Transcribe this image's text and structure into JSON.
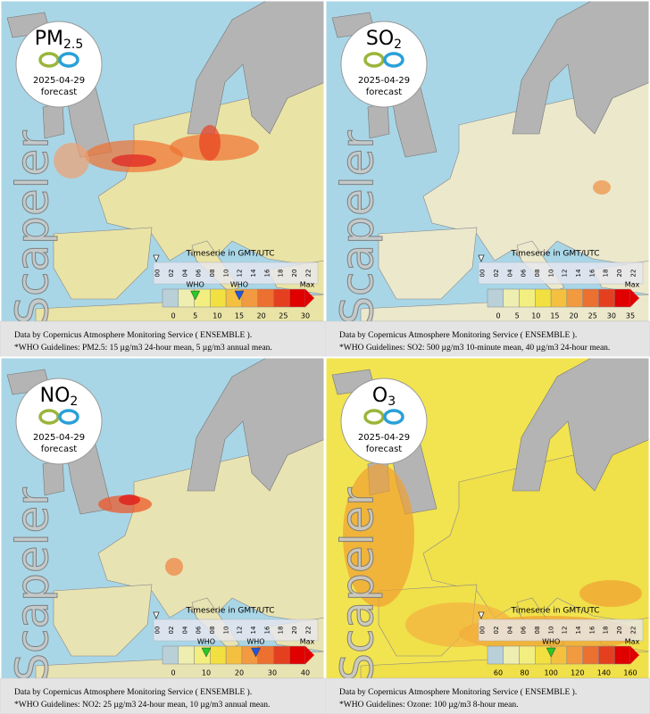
{
  "panels": [
    {
      "title": "PM",
      "subscript": "2.5",
      "date": "2025-04-29",
      "forecast": "forecast",
      "watermark": "Scapeler",
      "timeserie": "Timeserie in GMT/UTC",
      "hours": [
        "00",
        "02",
        "04",
        "06",
        "08",
        "10",
        "12",
        "14",
        "16",
        "18",
        "20",
        "22"
      ],
      "scale_labels": [
        0,
        5,
        10,
        15,
        20,
        25,
        30
      ],
      "max_label": "Max",
      "who": [
        {
          "label": "WHO",
          "value": 5
        },
        {
          "label": "WHO",
          "value": 15
        }
      ],
      "credit": "Data by Copernicus Atmosphere Monitoring Service ( ENSEMBLE ).",
      "guidelines": "*WHO Guidelines: PM2.5: 15 µg/m3 24-hour mean, 5 µg/m3 annual mean."
    },
    {
      "title": "SO",
      "subscript": "2",
      "date": "2025-04-29",
      "forecast": "forecast",
      "watermark": "Scapeler",
      "timeserie": "Timeserie in GMT/UTC",
      "hours": [
        "00",
        "02",
        "04",
        "06",
        "08",
        "10",
        "12",
        "14",
        "16",
        "18",
        "20",
        "22"
      ],
      "scale_labels": [
        0,
        5,
        10,
        15,
        20,
        25,
        30,
        35
      ],
      "max_label": "Max",
      "who": [],
      "credit": "Data by Copernicus Atmosphere Monitoring Service ( ENSEMBLE ).",
      "guidelines": "*WHO Guidelines: SO2: 500 µg/m3 10-minute mean, 40 µg/m3 24-hour mean."
    },
    {
      "title": "NO",
      "subscript": "2",
      "date": "2025-04-29",
      "forecast": "forecast",
      "watermark": "Scapeler",
      "timeserie": "Timeserie in GMT/UTC",
      "hours": [
        "00",
        "02",
        "04",
        "06",
        "08",
        "10",
        "12",
        "14",
        "16",
        "18",
        "20",
        "22"
      ],
      "scale_labels": [
        0,
        10,
        20,
        30,
        40
      ],
      "max_label": "Max",
      "who": [
        {
          "label": "WHO",
          "value": 10
        },
        {
          "label": "WHO",
          "value": 25
        }
      ],
      "credit": "Data by Copernicus Atmosphere Monitoring Service ( ENSEMBLE ).",
      "guidelines": "*WHO Guidelines: NO2: 25 µg/m3 24-hour mean, 10 µg/m3 annual mean."
    },
    {
      "title": "O",
      "subscript": "3",
      "date": "2025-04-29",
      "forecast": "forecast",
      "watermark": "Scapeler",
      "timeserie": "Timeserie in GMT/UTC",
      "hours": [
        "00",
        "02",
        "04",
        "06",
        "08",
        "10",
        "12",
        "14",
        "16",
        "18",
        "20",
        "22"
      ],
      "scale_labels": [
        60,
        80,
        100,
        120,
        140,
        160
      ],
      "max_label": "Max",
      "who": [
        {
          "label": "WHO",
          "value": 100
        }
      ],
      "credit": "Data by Copernicus Atmosphere Monitoring Service ( ENSEMBLE ).",
      "guidelines": "*WHO Guidelines: Ozone: 100 µg/m3 8-hour mean."
    }
  ]
}
